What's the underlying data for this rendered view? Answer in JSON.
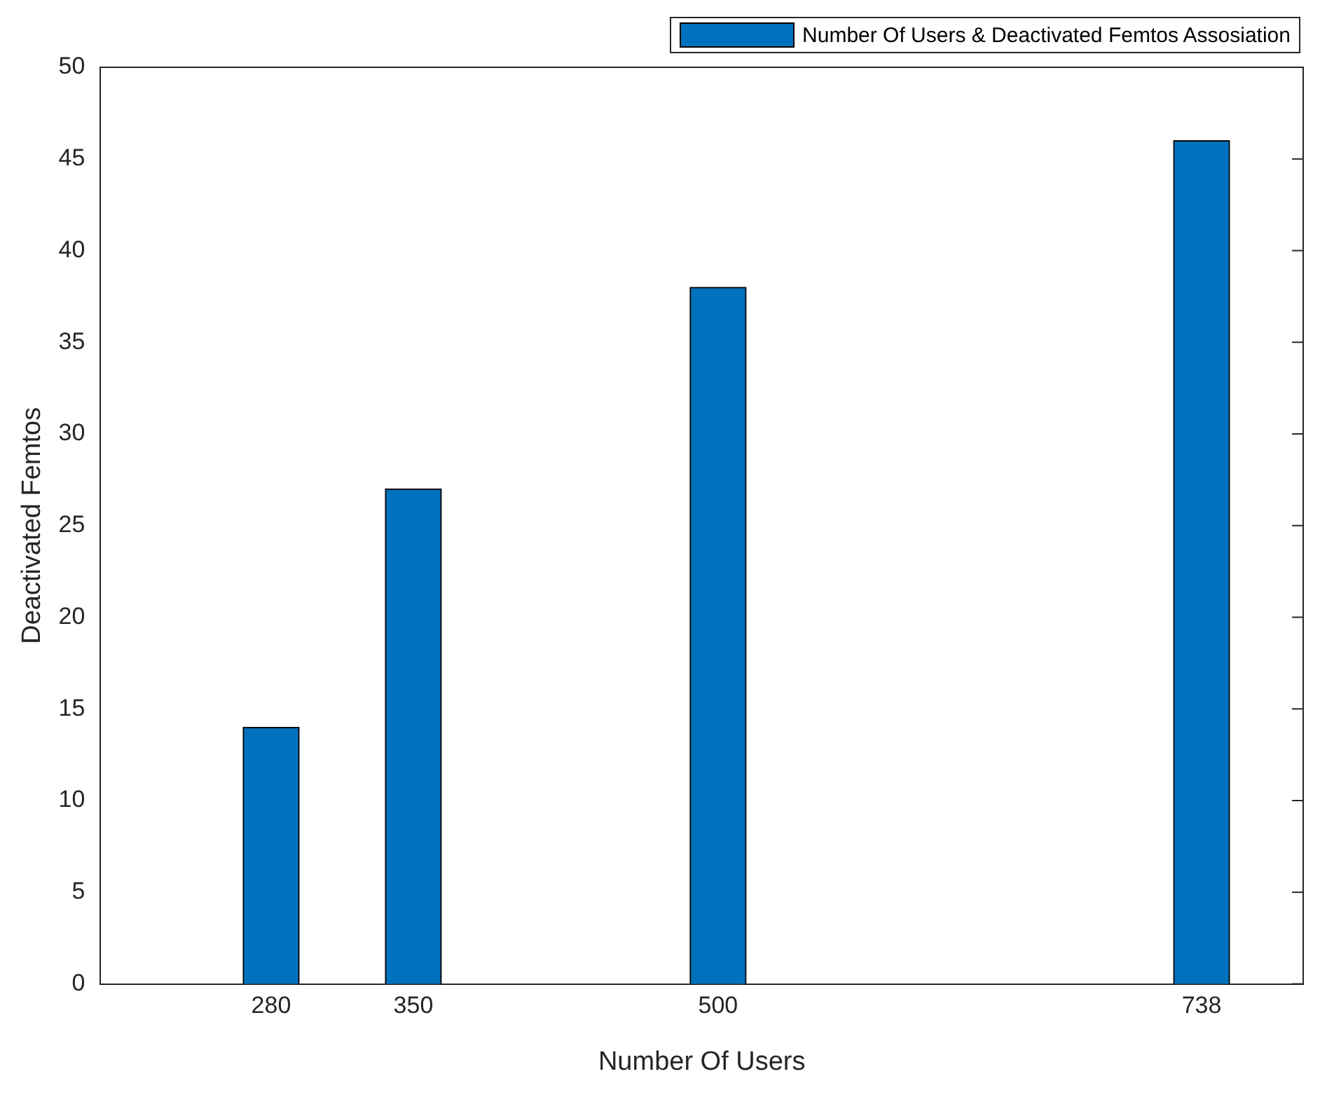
{
  "chart_data": {
    "type": "bar",
    "xlabel": "Number Of Users",
    "ylabel": "Deactivated Femtos",
    "x": [
      280,
      350,
      500,
      738
    ],
    "series": [
      {
        "name": "Number Of Users & Deactivated Femtos Assosiation",
        "color": "#0072bd",
        "values": [
          14,
          27,
          38,
          46
        ]
      }
    ],
    "xlim": [
      196,
      788
    ],
    "xticks": [
      280,
      350,
      500,
      738
    ],
    "ylim": [
      0,
      50
    ],
    "yticks": [
      0,
      5,
      10,
      15,
      20,
      25,
      30,
      35,
      40,
      45,
      50
    ],
    "grid": false,
    "legend": "top right"
  }
}
